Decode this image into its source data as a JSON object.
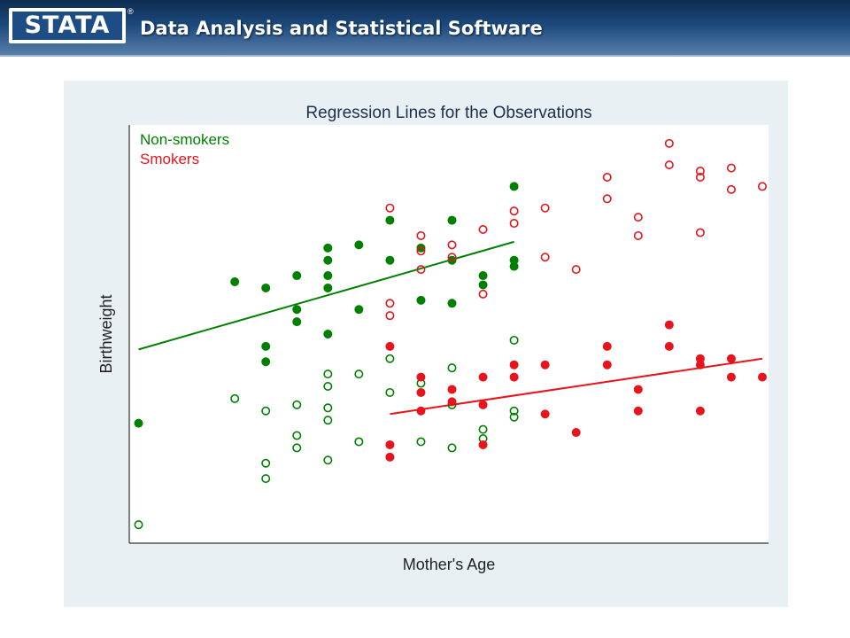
{
  "header": {
    "logo_text": "STATA",
    "registered_mark": "®",
    "subtitle": "Data Analysis and Statistical Software",
    "colors": {
      "header_dark": "#0d2c52",
      "header_light": "#5b82ad",
      "logo_blue": "#1e4d86"
    }
  },
  "chart_data": {
    "type": "scatter",
    "title": "Regression Lines for the Observations",
    "xlabel": "Mother's Age",
    "ylabel": "Birthweight",
    "xlim": [
      0,
      20.6
    ],
    "ylim": [
      0,
      13.6
    ],
    "grid": false,
    "legend_position": "top-left",
    "legend": [
      {
        "label": "Non-smokers",
        "color": "#008000"
      },
      {
        "label": "Smokers",
        "color": "#e8141d"
      }
    ],
    "series": [
      {
        "group": "non-smokers",
        "marker": "filled",
        "color": "#008000",
        "points": [
          [
            0.3,
            3.9
          ],
          [
            3.4,
            8.5
          ],
          [
            4.4,
            8.3
          ],
          [
            4.4,
            6.4
          ],
          [
            4.4,
            5.9
          ],
          [
            5.4,
            8.7
          ],
          [
            5.4,
            7.6
          ],
          [
            5.4,
            7.2
          ],
          [
            6.4,
            9.6
          ],
          [
            6.4,
            9.2
          ],
          [
            6.4,
            8.7
          ],
          [
            6.4,
            8.3
          ],
          [
            6.4,
            6.8
          ],
          [
            7.4,
            9.7
          ],
          [
            7.4,
            7.6
          ],
          [
            8.4,
            10.5
          ],
          [
            8.4,
            9.2
          ],
          [
            9.4,
            9.6
          ],
          [
            9.4,
            7.9
          ],
          [
            10.4,
            10.5
          ],
          [
            10.4,
            9.2
          ],
          [
            10.4,
            7.8
          ],
          [
            11.4,
            8.7
          ],
          [
            11.4,
            8.4
          ],
          [
            12.4,
            11.6
          ],
          [
            12.4,
            9.2
          ],
          [
            12.4,
            9.0
          ]
        ]
      },
      {
        "group": "non-smokers",
        "marker": "hollow",
        "color": "#008000",
        "points": [
          [
            0.3,
            0.6
          ],
          [
            3.4,
            4.7
          ],
          [
            4.4,
            4.3
          ],
          [
            4.4,
            2.6
          ],
          [
            4.4,
            2.1
          ],
          [
            5.4,
            4.5
          ],
          [
            5.4,
            3.5
          ],
          [
            5.4,
            3.1
          ],
          [
            6.4,
            5.5
          ],
          [
            6.4,
            5.1
          ],
          [
            6.4,
            4.4
          ],
          [
            6.4,
            4.0
          ],
          [
            6.4,
            2.7
          ],
          [
            7.4,
            5.5
          ],
          [
            7.4,
            3.3
          ],
          [
            8.4,
            6.0
          ],
          [
            8.4,
            4.9
          ],
          [
            9.4,
            5.2
          ],
          [
            9.4,
            3.3
          ],
          [
            10.4,
            5.7
          ],
          [
            10.4,
            4.5
          ],
          [
            10.4,
            3.1
          ],
          [
            11.4,
            3.7
          ],
          [
            11.4,
            3.4
          ],
          [
            12.4,
            6.6
          ],
          [
            12.4,
            4.3
          ],
          [
            12.4,
            4.1
          ]
        ]
      },
      {
        "group": "smokers",
        "marker": "hollow",
        "color": "#e8141d",
        "points": [
          [
            8.4,
            10.9
          ],
          [
            8.4,
            7.8
          ],
          [
            8.4,
            7.4
          ],
          [
            9.4,
            10.0
          ],
          [
            9.4,
            9.5
          ],
          [
            9.4,
            8.9
          ],
          [
            10.4,
            9.7
          ],
          [
            10.4,
            9.3
          ],
          [
            11.4,
            10.2
          ],
          [
            11.4,
            8.1
          ],
          [
            12.4,
            10.8
          ],
          [
            12.4,
            10.4
          ],
          [
            13.4,
            10.9
          ],
          [
            13.4,
            9.3
          ],
          [
            14.4,
            8.9
          ],
          [
            15.4,
            11.9
          ],
          [
            15.4,
            11.2
          ],
          [
            16.4,
            10.6
          ],
          [
            16.4,
            10.0
          ],
          [
            17.4,
            13.0
          ],
          [
            17.4,
            12.3
          ],
          [
            18.4,
            12.1
          ],
          [
            18.4,
            11.9
          ],
          [
            18.4,
            10.1
          ],
          [
            19.4,
            12.2
          ],
          [
            19.4,
            11.5
          ],
          [
            20.4,
            11.6
          ]
        ]
      },
      {
        "group": "smokers",
        "marker": "filled",
        "color": "#e8141d",
        "points": [
          [
            8.4,
            6.4
          ],
          [
            8.4,
            3.2
          ],
          [
            8.4,
            2.8
          ],
          [
            9.4,
            5.4
          ],
          [
            9.4,
            4.9
          ],
          [
            9.4,
            4.3
          ],
          [
            10.4,
            5.0
          ],
          [
            10.4,
            4.6
          ],
          [
            11.4,
            5.4
          ],
          [
            11.4,
            4.5
          ],
          [
            11.4,
            3.2
          ],
          [
            12.4,
            5.8
          ],
          [
            12.4,
            5.4
          ],
          [
            13.4,
            5.8
          ],
          [
            13.4,
            4.2
          ],
          [
            14.4,
            3.6
          ],
          [
            15.4,
            6.4
          ],
          [
            15.4,
            5.8
          ],
          [
            16.4,
            5.0
          ],
          [
            16.4,
            4.3
          ],
          [
            17.4,
            7.1
          ],
          [
            17.4,
            6.4
          ],
          [
            18.4,
            6.0
          ],
          [
            18.4,
            5.8
          ],
          [
            18.4,
            4.3
          ],
          [
            19.4,
            6.0
          ],
          [
            19.4,
            5.4
          ],
          [
            20.4,
            5.4
          ]
        ]
      }
    ],
    "regression_lines": [
      {
        "group": "non-smokers",
        "color": "#008000",
        "x": [
          0.3,
          12.4
        ],
        "y": [
          6.3,
          9.8
        ]
      },
      {
        "group": "smokers",
        "color": "#e8141d",
        "x": [
          8.4,
          20.4
        ],
        "y": [
          4.2,
          6.0
        ]
      }
    ]
  }
}
